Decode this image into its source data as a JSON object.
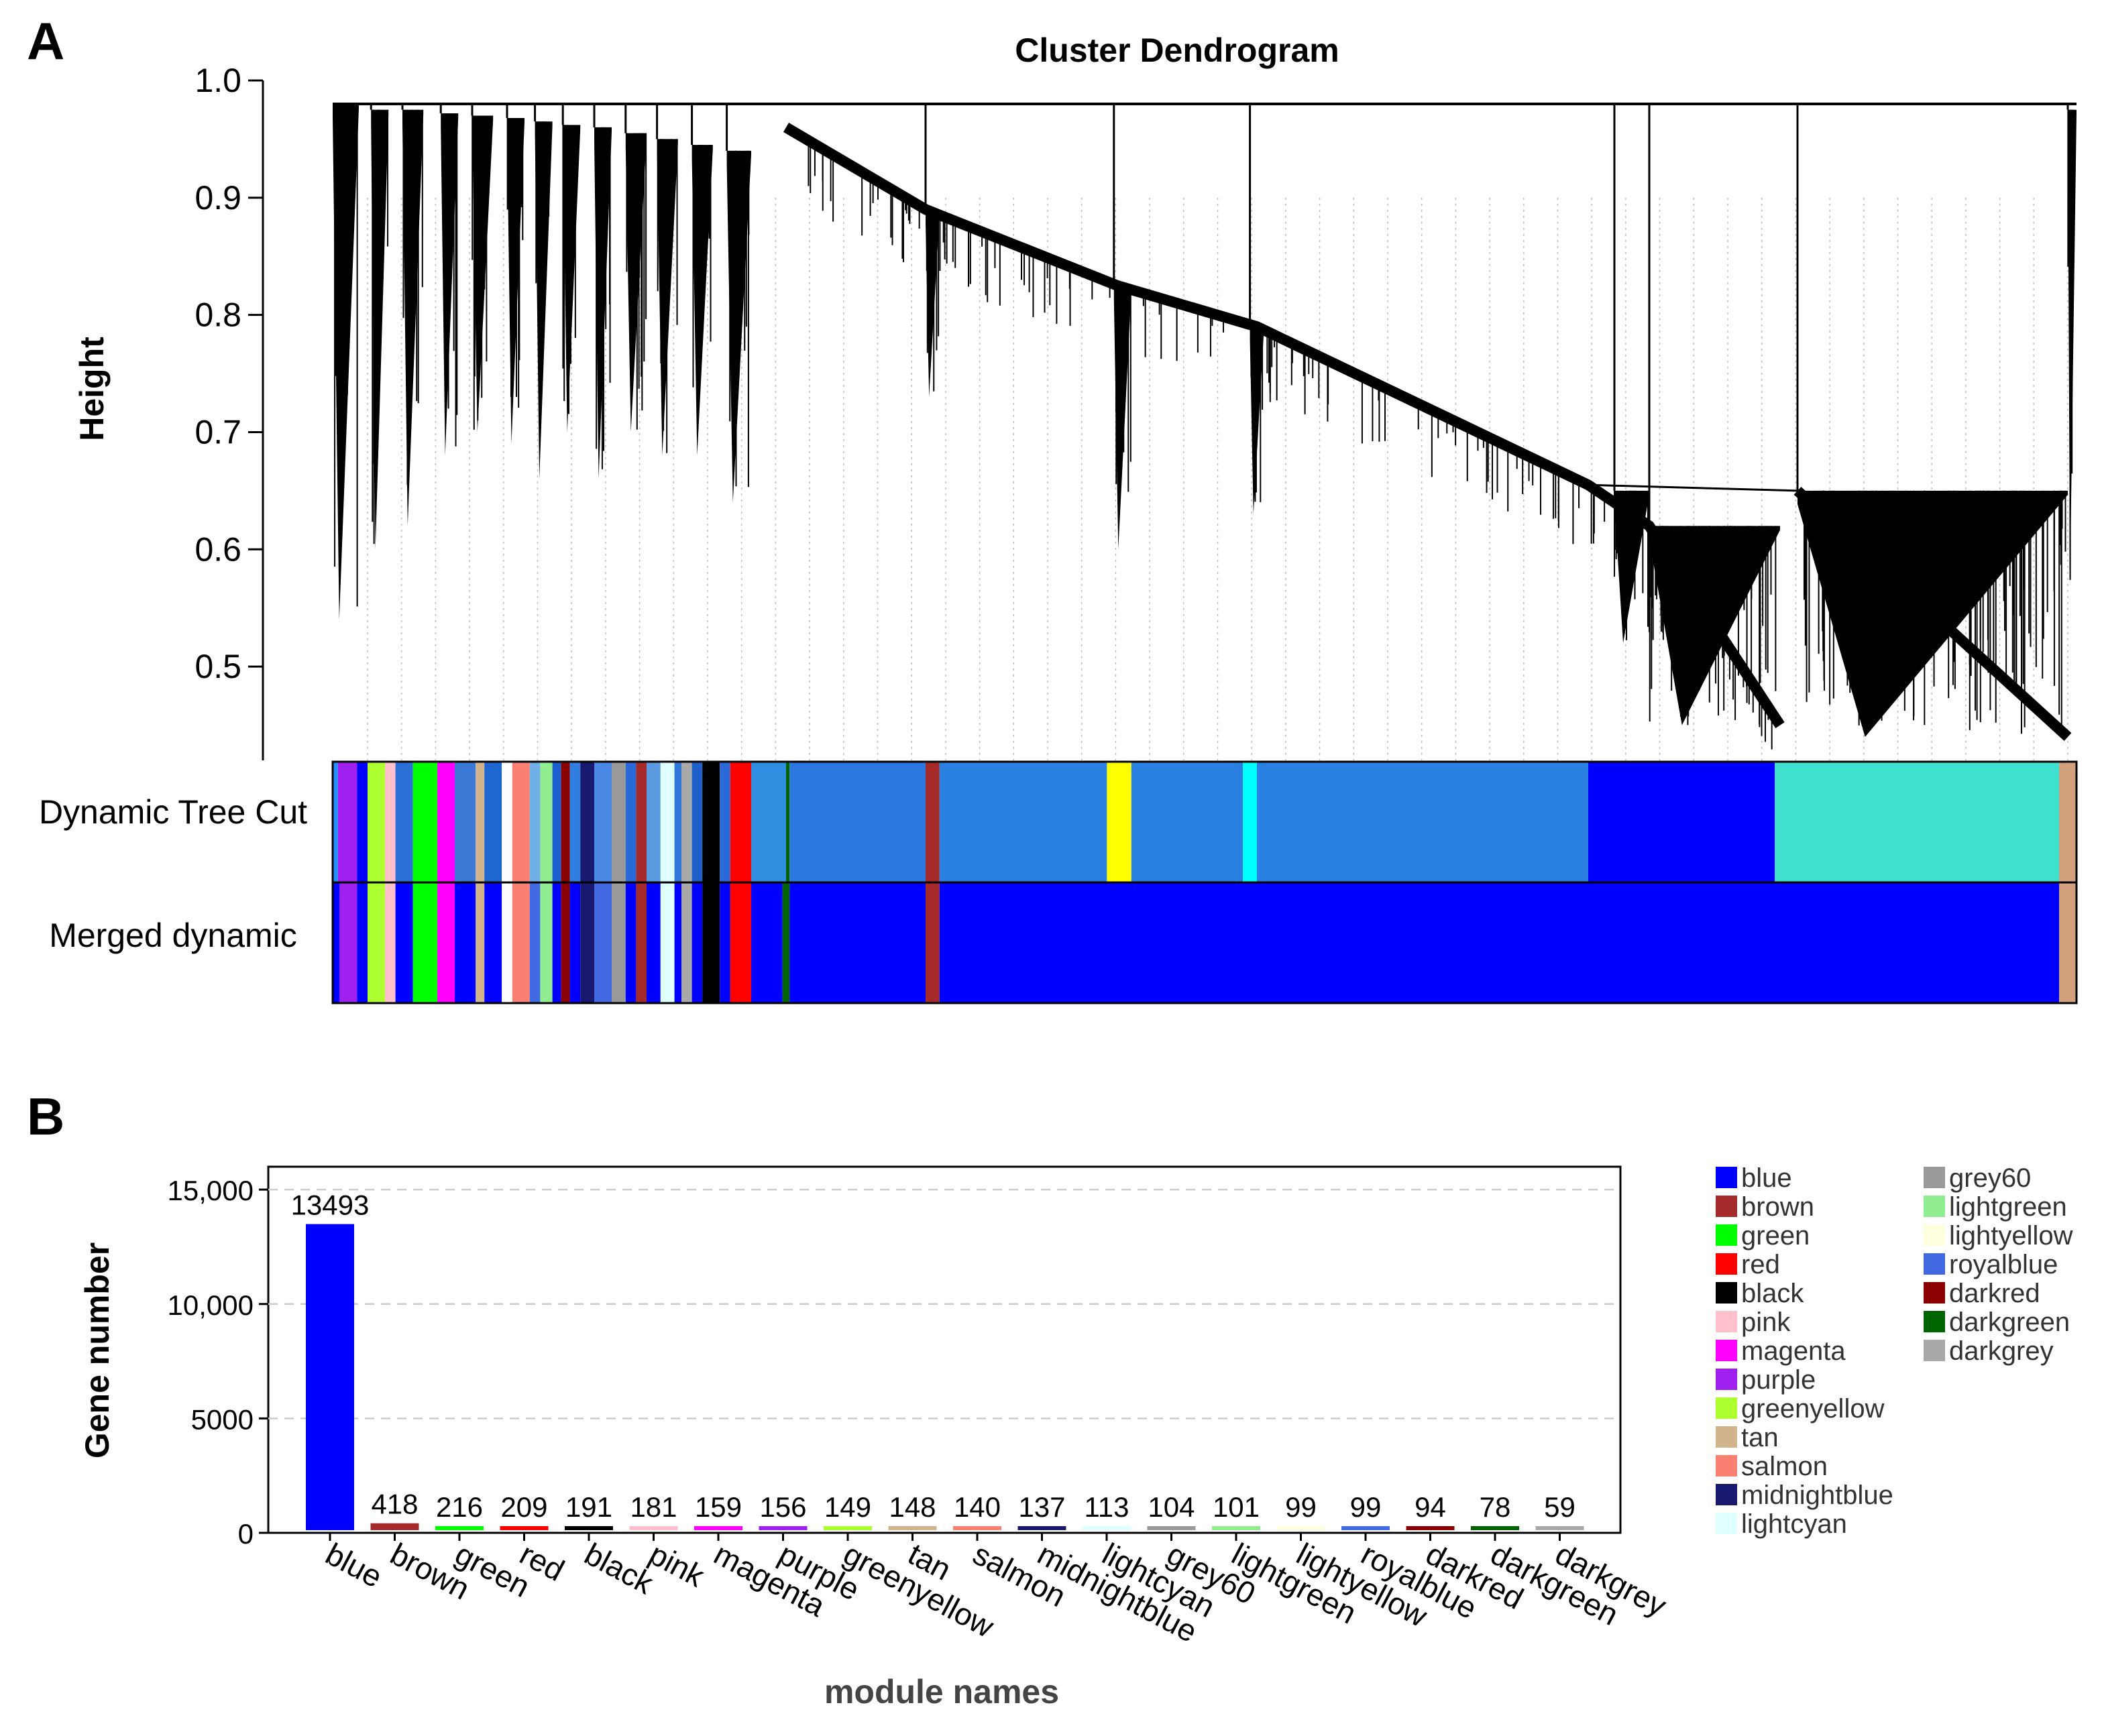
{
  "panel_a": {
    "label": "A",
    "title": "Cluster Dendrogram",
    "ylabel": "Height",
    "ylim": [
      0.42,
      1.0
    ],
    "yticks": [
      {
        "value": 1.0,
        "label": "1.0"
      },
      {
        "value": 0.9,
        "label": "0.9"
      },
      {
        "value": 0.8,
        "label": "0.8"
      },
      {
        "value": 0.7,
        "label": "0.7"
      },
      {
        "value": 0.6,
        "label": "0.6"
      },
      {
        "value": 0.5,
        "label": "0.5"
      }
    ],
    "tracks": [
      {
        "label": "Dynamic Tree Cut"
      },
      {
        "label": "Merged dynamic"
      }
    ]
  },
  "panel_b": {
    "label": "B",
    "xlabel": "module names",
    "ylabel": "Gene number",
    "ylim": [
      0,
      16000
    ],
    "yticks": [
      {
        "value": 15000,
        "label": "15,000"
      },
      {
        "value": 10000,
        "label": "10,000"
      },
      {
        "value": 5000,
        "label": "5000"
      },
      {
        "value": 0,
        "label": "0"
      }
    ]
  },
  "chart_data": [
    {
      "type": "dendrogram",
      "title": "Cluster Dendrogram",
      "ylabel": "Height",
      "ylim": [
        0.42,
        1.0
      ],
      "top_merge_height": 0.98,
      "tracks": [
        "Dynamic Tree Cut",
        "Merged dynamic"
      ],
      "cut_fraction_range": [
        0.0,
        1.0
      ],
      "branches": [
        {
          "start": 0.0,
          "end": 0.015,
          "top": 0.98,
          "bottom": 0.54
        },
        {
          "start": 0.022,
          "end": 0.032,
          "top": 0.975,
          "bottom": 0.6
        },
        {
          "start": 0.04,
          "end": 0.052,
          "top": 0.975,
          "bottom": 0.62
        },
        {
          "start": 0.062,
          "end": 0.072,
          "top": 0.972,
          "bottom": 0.68
        },
        {
          "start": 0.08,
          "end": 0.092,
          "top": 0.97,
          "bottom": 0.7
        },
        {
          "start": 0.1,
          "end": 0.11,
          "top": 0.968,
          "bottom": 0.69
        },
        {
          "start": 0.116,
          "end": 0.126,
          "top": 0.965,
          "bottom": 0.66
        },
        {
          "start": 0.132,
          "end": 0.142,
          "top": 0.962,
          "bottom": 0.7
        },
        {
          "start": 0.15,
          "end": 0.16,
          "top": 0.96,
          "bottom": 0.66
        },
        {
          "start": 0.168,
          "end": 0.18,
          "top": 0.955,
          "bottom": 0.7
        },
        {
          "start": 0.186,
          "end": 0.198,
          "top": 0.95,
          "bottom": 0.68
        },
        {
          "start": 0.206,
          "end": 0.218,
          "top": 0.945,
          "bottom": 0.68
        },
        {
          "start": 0.226,
          "end": 0.24,
          "top": 0.94,
          "bottom": 0.64
        },
        {
          "start": 0.34,
          "end": 0.348,
          "top": 0.89,
          "bottom": 0.73
        },
        {
          "start": 0.448,
          "end": 0.458,
          "top": 0.825,
          "bottom": 0.6
        },
        {
          "start": 0.526,
          "end": 0.534,
          "top": 0.79,
          "bottom": 0.63
        },
        {
          "start": 0.735,
          "end": 0.755,
          "top": 0.65,
          "bottom": 0.52
        },
        {
          "start": 0.755,
          "end": 0.83,
          "top": 0.62,
          "bottom": 0.45
        },
        {
          "start": 0.84,
          "end": 0.995,
          "top": 0.65,
          "bottom": 0.44
        },
        {
          "start": 0.995,
          "end": 1.0,
          "top": 0.975,
          "bottom": 0.57
        }
      ],
      "tree_cut_segments": [
        {
          "start": 0.0,
          "end": 0.003,
          "color": "#1e90ff"
        },
        {
          "start": 0.003,
          "end": 0.014,
          "color": "#a020f0"
        },
        {
          "start": 0.014,
          "end": 0.02,
          "color": "#0000ff"
        },
        {
          "start": 0.02,
          "end": 0.03,
          "color": "#adff2f"
        },
        {
          "start": 0.03,
          "end": 0.036,
          "color": "#ffc0cb"
        },
        {
          "start": 0.036,
          "end": 0.046,
          "color": "#2a6fd6"
        },
        {
          "start": 0.046,
          "end": 0.06,
          "color": "#00ff00"
        },
        {
          "start": 0.06,
          "end": 0.07,
          "color": "#ff00ff"
        },
        {
          "start": 0.07,
          "end": 0.082,
          "color": "#3a7ad6"
        },
        {
          "start": 0.082,
          "end": 0.087,
          "color": "#d2b48c"
        },
        {
          "start": 0.087,
          "end": 0.097,
          "color": "#1e66d0"
        },
        {
          "start": 0.097,
          "end": 0.103,
          "color": "#ffffff"
        },
        {
          "start": 0.103,
          "end": 0.113,
          "color": "#fa8072"
        },
        {
          "start": 0.113,
          "end": 0.119,
          "color": "#6fb0e8"
        },
        {
          "start": 0.119,
          "end": 0.126,
          "color": "#90ee90"
        },
        {
          "start": 0.126,
          "end": 0.131,
          "color": "#1a5ed0"
        },
        {
          "start": 0.131,
          "end": 0.136,
          "color": "#8b0000"
        },
        {
          "start": 0.136,
          "end": 0.142,
          "color": "#2f7ee0"
        },
        {
          "start": 0.142,
          "end": 0.15,
          "color": "#191970"
        },
        {
          "start": 0.15,
          "end": 0.16,
          "color": "#4a8ae6"
        },
        {
          "start": 0.16,
          "end": 0.168,
          "color": "#999999"
        },
        {
          "start": 0.168,
          "end": 0.174,
          "color": "#2a6ad8"
        },
        {
          "start": 0.174,
          "end": 0.18,
          "color": "#a52a2a"
        },
        {
          "start": 0.18,
          "end": 0.188,
          "color": "#5a9ae0"
        },
        {
          "start": 0.188,
          "end": 0.196,
          "color": "#e0ffff"
        },
        {
          "start": 0.196,
          "end": 0.2,
          "color": "#2f77d8"
        },
        {
          "start": 0.2,
          "end": 0.206,
          "color": "#a9a9a9"
        },
        {
          "start": 0.206,
          "end": 0.212,
          "color": "#1e5fcc"
        },
        {
          "start": 0.212,
          "end": 0.222,
          "color": "#000000"
        },
        {
          "start": 0.222,
          "end": 0.228,
          "color": "#2a6ad8"
        },
        {
          "start": 0.228,
          "end": 0.24,
          "color": "#ff0000"
        },
        {
          "start": 0.24,
          "end": 0.26,
          "color": "#2f8ee0"
        },
        {
          "start": 0.26,
          "end": 0.262,
          "color": "#006400"
        },
        {
          "start": 0.262,
          "end": 0.34,
          "color": "#2a78e0"
        },
        {
          "start": 0.34,
          "end": 0.348,
          "color": "#a52a2a"
        },
        {
          "start": 0.348,
          "end": 0.444,
          "color": "#2a80e0"
        },
        {
          "start": 0.444,
          "end": 0.458,
          "color": "#ffff00"
        },
        {
          "start": 0.458,
          "end": 0.522,
          "color": "#2a80e0"
        },
        {
          "start": 0.522,
          "end": 0.53,
          "color": "#00ffff"
        },
        {
          "start": 0.53,
          "end": 0.72,
          "color": "#2a80e0"
        },
        {
          "start": 0.72,
          "end": 0.827,
          "color": "#0000ff"
        },
        {
          "start": 0.827,
          "end": 0.99,
          "color": "#40e0d0"
        },
        {
          "start": 0.99,
          "end": 1.0,
          "color": "#d2a07c"
        }
      ],
      "merged_segments": [
        {
          "start": 0.0,
          "end": 0.004,
          "color": "#0000ff"
        },
        {
          "start": 0.004,
          "end": 0.014,
          "color": "#a020f0"
        },
        {
          "start": 0.014,
          "end": 0.02,
          "color": "#0000ff"
        },
        {
          "start": 0.02,
          "end": 0.03,
          "color": "#adff2f"
        },
        {
          "start": 0.03,
          "end": 0.036,
          "color": "#ffc0cb"
        },
        {
          "start": 0.036,
          "end": 0.046,
          "color": "#0000ff"
        },
        {
          "start": 0.046,
          "end": 0.06,
          "color": "#00ff00"
        },
        {
          "start": 0.06,
          "end": 0.07,
          "color": "#ff00ff"
        },
        {
          "start": 0.07,
          "end": 0.082,
          "color": "#0000ff"
        },
        {
          "start": 0.082,
          "end": 0.087,
          "color": "#d2b48c"
        },
        {
          "start": 0.087,
          "end": 0.097,
          "color": "#0000ff"
        },
        {
          "start": 0.097,
          "end": 0.103,
          "color": "#ffffff"
        },
        {
          "start": 0.103,
          "end": 0.113,
          "color": "#fa8072"
        },
        {
          "start": 0.113,
          "end": 0.119,
          "color": "#4169e1"
        },
        {
          "start": 0.119,
          "end": 0.126,
          "color": "#90ee90"
        },
        {
          "start": 0.126,
          "end": 0.131,
          "color": "#0000ff"
        },
        {
          "start": 0.131,
          "end": 0.136,
          "color": "#8b0000"
        },
        {
          "start": 0.136,
          "end": 0.142,
          "color": "#0000ff"
        },
        {
          "start": 0.142,
          "end": 0.15,
          "color": "#191970"
        },
        {
          "start": 0.15,
          "end": 0.16,
          "color": "#4169e1"
        },
        {
          "start": 0.16,
          "end": 0.168,
          "color": "#999999"
        },
        {
          "start": 0.168,
          "end": 0.174,
          "color": "#0000ff"
        },
        {
          "start": 0.174,
          "end": 0.18,
          "color": "#a52a2a"
        },
        {
          "start": 0.18,
          "end": 0.188,
          "color": "#0000ff"
        },
        {
          "start": 0.188,
          "end": 0.196,
          "color": "#e0ffff"
        },
        {
          "start": 0.196,
          "end": 0.2,
          "color": "#0000ff"
        },
        {
          "start": 0.2,
          "end": 0.206,
          "color": "#a9a9a9"
        },
        {
          "start": 0.206,
          "end": 0.212,
          "color": "#0000ff"
        },
        {
          "start": 0.212,
          "end": 0.222,
          "color": "#000000"
        },
        {
          "start": 0.222,
          "end": 0.228,
          "color": "#0000ff"
        },
        {
          "start": 0.228,
          "end": 0.24,
          "color": "#ff0000"
        },
        {
          "start": 0.24,
          "end": 0.258,
          "color": "#0000ff"
        },
        {
          "start": 0.258,
          "end": 0.262,
          "color": "#006400"
        },
        {
          "start": 0.262,
          "end": 0.34,
          "color": "#0000ff"
        },
        {
          "start": 0.34,
          "end": 0.348,
          "color": "#a52a2a"
        },
        {
          "start": 0.348,
          "end": 0.99,
          "color": "#0000ff"
        },
        {
          "start": 0.99,
          "end": 1.0,
          "color": "#d2a07c"
        }
      ]
    },
    {
      "type": "bar",
      "xlabel": "module names",
      "ylabel": "Gene number",
      "ylim": [
        0,
        16000
      ],
      "grid": true,
      "categories": [
        "blue",
        "brown",
        "green",
        "red",
        "black",
        "pink",
        "magenta",
        "purple",
        "greenyellow",
        "tan",
        "salmon",
        "midnightblue",
        "lightcyan",
        "grey60",
        "lightgreen",
        "lightyellow",
        "royalblue",
        "darkred",
        "darkgreen",
        "darkgrey"
      ],
      "values": [
        13493,
        418,
        216,
        209,
        191,
        181,
        159,
        156,
        149,
        148,
        140,
        137,
        113,
        104,
        101,
        99,
        99,
        94,
        78,
        59
      ],
      "value_labels": [
        "13493",
        "418",
        "216",
        "209",
        "191",
        "181",
        "159",
        "156",
        "149",
        "148",
        "140",
        "137",
        "113",
        "104",
        "101",
        "99",
        "99",
        "94",
        "78",
        "59"
      ],
      "colors": [
        "#0000ff",
        "#a52a2a",
        "#00ff00",
        "#ff0000",
        "#000000",
        "#ffc0cb",
        "#ff00ff",
        "#a020f0",
        "#adff2f",
        "#d2b48c",
        "#fa8072",
        "#191970",
        "#e0ffff",
        "#999999",
        "#90ee90",
        "#ffffe0",
        "#4169e1",
        "#8b0000",
        "#006400",
        "#a9a9a9"
      ],
      "legend": {
        "placement": "right",
        "entries": [
          {
            "name": "blue",
            "color": "#0000ff"
          },
          {
            "name": "brown",
            "color": "#a52a2a"
          },
          {
            "name": "green",
            "color": "#00ff00"
          },
          {
            "name": "red",
            "color": "#ff0000"
          },
          {
            "name": "black",
            "color": "#000000"
          },
          {
            "name": "pink",
            "color": "#ffc0cb"
          },
          {
            "name": "magenta",
            "color": "#ff00ff"
          },
          {
            "name": "purple",
            "color": "#a020f0"
          },
          {
            "name": "greenyellow",
            "color": "#adff2f"
          },
          {
            "name": "tan",
            "color": "#d2b48c"
          },
          {
            "name": "salmon",
            "color": "#fa8072"
          },
          {
            "name": "midnightblue",
            "color": "#191970"
          },
          {
            "name": "lightcyan",
            "color": "#e0ffff"
          },
          {
            "name": "grey60",
            "color": "#999999"
          },
          {
            "name": "lightgreen",
            "color": "#90ee90"
          },
          {
            "name": "lightyellow",
            "color": "#ffffe0"
          },
          {
            "name": "royalblue",
            "color": "#4169e1"
          },
          {
            "name": "darkred",
            "color": "#8b0000"
          },
          {
            "name": "darkgreen",
            "color": "#006400"
          },
          {
            "name": "darkgrey",
            "color": "#a9a9a9"
          }
        ]
      }
    }
  ]
}
